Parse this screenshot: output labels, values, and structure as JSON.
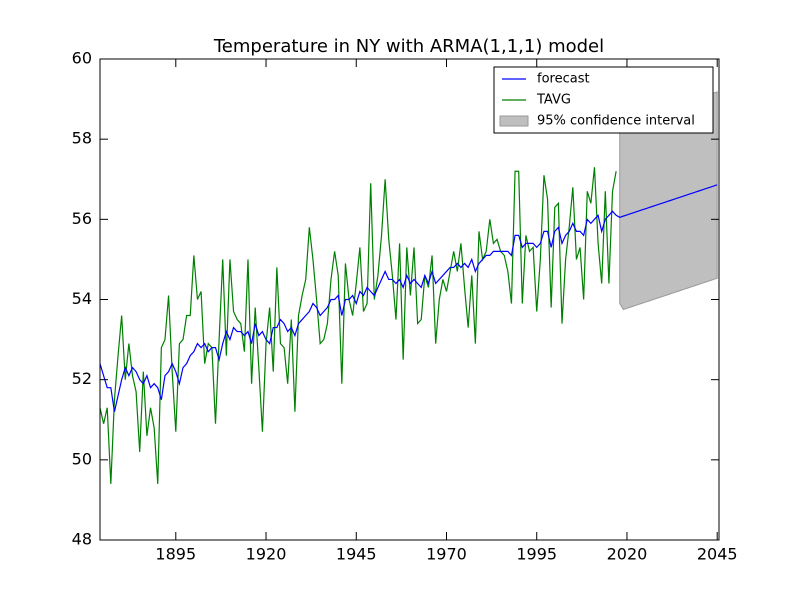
{
  "chart_data": {
    "type": "line",
    "title": "Temperature in NY with ARMA(1,1,1) model",
    "x": [
      1874,
      1875,
      1876,
      1877,
      1878,
      1879,
      1880,
      1881,
      1882,
      1883,
      1884,
      1885,
      1886,
      1887,
      1888,
      1889,
      1890,
      1891,
      1892,
      1893,
      1894,
      1895,
      1896,
      1897,
      1898,
      1899,
      1900,
      1901,
      1902,
      1903,
      1904,
      1905,
      1906,
      1907,
      1908,
      1909,
      1910,
      1911,
      1912,
      1913,
      1914,
      1915,
      1916,
      1917,
      1918,
      1919,
      1920,
      1921,
      1922,
      1923,
      1924,
      1925,
      1926,
      1927,
      1928,
      1929,
      1930,
      1931,
      1932,
      1933,
      1934,
      1935,
      1936,
      1937,
      1938,
      1939,
      1940,
      1941,
      1942,
      1943,
      1944,
      1945,
      1946,
      1947,
      1948,
      1949,
      1950,
      1951,
      1952,
      1953,
      1954,
      1955,
      1956,
      1957,
      1958,
      1959,
      1960,
      1961,
      1962,
      1963,
      1964,
      1965,
      1966,
      1967,
      1968,
      1969,
      1970,
      1971,
      1972,
      1973,
      1974,
      1975,
      1976,
      1977,
      1978,
      1979,
      1980,
      1981,
      1982,
      1983,
      1984,
      1985,
      1986,
      1987,
      1988,
      1989,
      1990,
      1991,
      1992,
      1993,
      1994,
      1995,
      1996,
      1997,
      1998,
      1999,
      2000,
      2001,
      2002,
      2003,
      2004,
      2005,
      2006,
      2007,
      2008,
      2009,
      2010,
      2011,
      2012,
      2013,
      2014,
      2015,
      2016,
      2017,
      2018,
      2019,
      2020,
      2021,
      2022,
      2023,
      2024,
      2025,
      2026,
      2027,
      2028,
      2029,
      2030,
      2031,
      2032,
      2033,
      2034,
      2035,
      2036,
      2037,
      2038,
      2039,
      2040,
      2041,
      2042,
      2043,
      2044,
      2045
    ],
    "series": [
      {
        "name": "forecast",
        "color": "#0000ff",
        "values": [
          52.4,
          52.1,
          51.8,
          51.8,
          51.2,
          51.6,
          52.0,
          52.3,
          52.1,
          52.3,
          52.2,
          52.0,
          51.9,
          52.1,
          51.8,
          51.9,
          51.8,
          51.5,
          52.1,
          52.2,
          52.4,
          52.2,
          51.9,
          52.3,
          52.4,
          52.6,
          52.7,
          52.9,
          52.8,
          52.9,
          52.7,
          52.8,
          52.8,
          52.5,
          52.9,
          53.2,
          53.0,
          53.3,
          53.2,
          53.2,
          53.1,
          53.2,
          52.9,
          53.4,
          53.1,
          53.2,
          53.0,
          52.9,
          53.3,
          53.3,
          53.5,
          53.4,
          53.2,
          53.3,
          53.1,
          53.4,
          53.5,
          53.6,
          53.7,
          53.9,
          53.8,
          53.6,
          53.7,
          53.8,
          54.0,
          54.0,
          54.1,
          53.6,
          54.0,
          54.0,
          54.1,
          53.9,
          54.2,
          54.1,
          54.3,
          54.2,
          54.1,
          54.3,
          54.5,
          54.7,
          54.5,
          54.5,
          54.4,
          54.5,
          54.3,
          54.6,
          54.4,
          54.5,
          54.4,
          54.3,
          54.6,
          54.4,
          54.7,
          54.4,
          54.5,
          54.6,
          54.7,
          54.8,
          54.8,
          54.9,
          54.8,
          54.9,
          54.8,
          55.0,
          54.7,
          54.9,
          55.0,
          55.1,
          55.1,
          55.2,
          55.2,
          55.2,
          55.2,
          55.2,
          55.1,
          55.6,
          55.6,
          55.3,
          55.4,
          55.4,
          55.4,
          55.3,
          55.4,
          55.7,
          55.7,
          55.3,
          55.7,
          55.8,
          55.4,
          55.6,
          55.7,
          55.9,
          55.7,
          55.7,
          55.6,
          56.0,
          55.9,
          56.0,
          56.1,
          55.7,
          56.0,
          56.1,
          56.2,
          56.1,
          56.05,
          56.08,
          56.11,
          56.14,
          56.17,
          56.2,
          56.23,
          56.26,
          56.29,
          56.32,
          56.35,
          56.38,
          56.41,
          56.44,
          56.47,
          56.5,
          56.53,
          56.56,
          56.59,
          56.62,
          56.65,
          56.68,
          56.71,
          56.74,
          56.77,
          56.8,
          56.83,
          56.86
        ]
      },
      {
        "name": "TAVG",
        "color": "#008000",
        "values": [
          51.3,
          50.9,
          51.3,
          49.4,
          51.5,
          52.6,
          53.6,
          52.0,
          52.9,
          52.1,
          51.7,
          50.2,
          52.2,
          50.6,
          51.3,
          50.8,
          49.4,
          52.8,
          53.0,
          54.1,
          52.2,
          50.7,
          52.9,
          53.0,
          53.6,
          53.6,
          55.1,
          54.0,
          54.2,
          52.4,
          52.9,
          52.8,
          50.9,
          53.0,
          55.0,
          52.6,
          55.0,
          53.7,
          53.5,
          53.4,
          52.7,
          55.0,
          51.9,
          53.8,
          52.3,
          50.7,
          52.9,
          53.8,
          52.2,
          54.8,
          52.9,
          52.8,
          51.9,
          53.5,
          51.2,
          53.6,
          54.1,
          54.5,
          55.8,
          55.0,
          54.0,
          52.9,
          53.0,
          53.4,
          54.5,
          55.2,
          54.6,
          51.9,
          54.9,
          54.0,
          53.6,
          54.4,
          55.3,
          53.7,
          53.9,
          56.9,
          54.0,
          54.6,
          55.6,
          57.0,
          55.5,
          54.6,
          53.5,
          55.4,
          52.5,
          55.3,
          54.1,
          55.3,
          53.4,
          53.5,
          54.6,
          54.3,
          55.1,
          52.9,
          54.0,
          54.5,
          54.2,
          54.7,
          55.2,
          54.7,
          55.4,
          54.3,
          53.3,
          54.6,
          52.9,
          55.7,
          55.0,
          55.2,
          56.0,
          55.4,
          55.5,
          55.2,
          55.1,
          54.7,
          53.9,
          57.2,
          57.2,
          53.9,
          55.6,
          55.2,
          55.3,
          53.7,
          55.0,
          57.1,
          56.5,
          53.8,
          56.3,
          56.4,
          53.4,
          55.0,
          55.8,
          56.8,
          55.0,
          55.3,
          54.0,
          56.7,
          56.4,
          57.3,
          55.4,
          54.4,
          56.7,
          54.4,
          56.7,
          57.2,
          null,
          null,
          null,
          null,
          null,
          null,
          null,
          null,
          null,
          null,
          null,
          null,
          null,
          null,
          null,
          null,
          null,
          null,
          null,
          null,
          null,
          null,
          null,
          null,
          null,
          null,
          null,
          null
        ]
      }
    ],
    "confidence_interval": {
      "name": "95% confidence interval",
      "color": "#bfbfbf",
      "x": [
        2018,
        2019,
        2020,
        2021,
        2022,
        2023,
        2024,
        2025,
        2026,
        2027,
        2028,
        2029,
        2030,
        2031,
        2032,
        2033,
        2034,
        2035,
        2036,
        2037,
        2038,
        2039,
        2040,
        2041,
        2042,
        2043,
        2044,
        2045
      ],
      "lower": [
        53.9,
        53.75,
        53.78,
        53.81,
        53.84,
        53.87,
        53.9,
        53.93,
        53.96,
        53.99,
        54.02,
        54.05,
        54.08,
        54.11,
        54.14,
        54.17,
        54.2,
        54.23,
        54.26,
        54.29,
        54.32,
        54.35,
        54.38,
        54.41,
        54.44,
        54.47,
        54.5,
        54.53
      ],
      "upper": [
        58.2,
        58.4,
        58.43,
        58.46,
        58.49,
        58.52,
        58.55,
        58.58,
        58.61,
        58.64,
        58.67,
        58.7,
        58.73,
        58.76,
        58.79,
        58.82,
        58.85,
        58.88,
        58.91,
        58.94,
        58.97,
        59.0,
        59.03,
        59.06,
        59.09,
        59.12,
        59.15,
        59.18
      ]
    },
    "xlim": [
      1874,
      2045.5
    ],
    "xticks": [
      1895,
      1920,
      1945,
      1970,
      1995,
      2020,
      2045
    ],
    "ylim": [
      48,
      60
    ],
    "yticks": [
      48,
      50,
      52,
      54,
      56,
      58,
      60
    ],
    "legend": "upper right"
  }
}
